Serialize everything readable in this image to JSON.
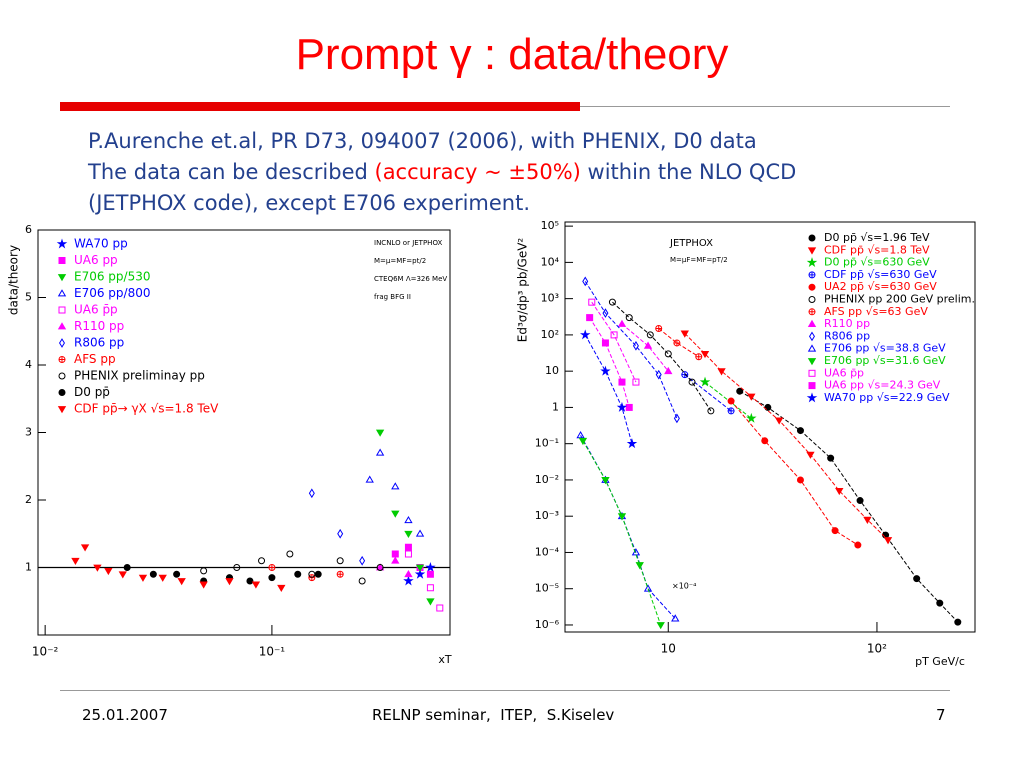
{
  "slide": {
    "title": "Prompt γ : data/theory",
    "lines": [
      "P.Aurenche et.al, PR D73, 094007 (2006), with PHENIX, D0 data",
      "The data can be described ",
      "(accuracy ~ ±50%)",
      " within the NLO QCD",
      "(JETPHOX code), except E706 experiment."
    ]
  },
  "chart_data": [
    {
      "type": "scatter",
      "y_label": "data/theory",
      "x_label": "xT",
      "xlog": true,
      "ylog": false,
      "xlim": [
        0.0093,
        0.61
      ],
      "ylim": [
        0,
        6
      ],
      "xticks": [
        {
          "value": 0.01,
          "label": "10⁻²"
        },
        {
          "value": 0.1,
          "label": "10⁻¹"
        }
      ],
      "yticks": [
        1,
        2,
        3,
        4,
        5,
        6
      ],
      "hline": 1,
      "annotations": [
        "INCNLO or JETPHOX",
        "M=μ=MF=pt/2",
        "CTEQ6M Λ=326 MeV",
        "frag  BFG II"
      ],
      "series": [
        {
          "name": "WA70 pp",
          "color": "#0000ff",
          "marker": "star",
          "x": [
            0.4,
            0.45,
            0.5
          ],
          "values": [
            0.8,
            0.9,
            1.0
          ]
        },
        {
          "name": "UA6 pp",
          "color": "#ff00ff",
          "marker": "square",
          "x": [
            0.35,
            0.4,
            0.45,
            0.5
          ],
          "values": [
            1.2,
            1.3,
            1.0,
            0.9
          ]
        },
        {
          "name": "E706 pp/530",
          "color": "#00cc00",
          "marker": "tri-down",
          "x": [
            0.3,
            0.35,
            0.4,
            0.45,
            0.5
          ],
          "values": [
            3.0,
            1.8,
            1.5,
            1.0,
            0.5
          ]
        },
        {
          "name": "E706 pp/800",
          "color": "#0000ff",
          "marker": "tri-up-open",
          "x": [
            0.27,
            0.3,
            0.35,
            0.4,
            0.45
          ],
          "values": [
            2.3,
            2.7,
            2.2,
            1.7,
            1.5
          ]
        },
        {
          "name": "UA6 p̄p",
          "color": "#ff00ff",
          "marker": "square-open",
          "x": [
            0.4,
            0.5,
            0.55
          ],
          "values": [
            1.2,
            0.7,
            0.4
          ]
        },
        {
          "name": "R110 pp",
          "color": "#ff00ff",
          "marker": "tri-up",
          "x": [
            0.3,
            0.35,
            0.4
          ],
          "values": [
            1.0,
            1.1,
            0.9
          ]
        },
        {
          "name": "R806 pp",
          "color": "#0000ff",
          "marker": "diamond-open",
          "x": [
            0.15,
            0.2,
            0.25
          ],
          "values": [
            2.1,
            1.5,
            1.1
          ]
        },
        {
          "name": "AFS pp",
          "color": "#ff0000",
          "marker": "cross-circle",
          "x": [
            0.1,
            0.15,
            0.2
          ],
          "values": [
            1.0,
            0.85,
            0.9
          ]
        },
        {
          "name": "PHENIX preliminay pp",
          "color": "#000000",
          "marker": "circle-open",
          "x": [
            0.05,
            0.07,
            0.09,
            0.12,
            0.15,
            0.2,
            0.25,
            0.3
          ],
          "values": [
            0.95,
            1.0,
            1.1,
            1.2,
            0.9,
            1.1,
            0.8,
            1.0
          ]
        },
        {
          "name": "D0 pp̄",
          "color": "#000000",
          "marker": "circle",
          "x": [
            0.023,
            0.03,
            0.038,
            0.05,
            0.065,
            0.08,
            0.1,
            0.13,
            0.16
          ],
          "values": [
            1.0,
            0.9,
            0.9,
            0.8,
            0.85,
            0.8,
            0.85,
            0.9,
            0.9
          ]
        },
        {
          "name": "CDF pp̄→ γX √s=1.8 TeV",
          "color": "#ff0000",
          "marker": "tri-down",
          "x": [
            0.0136,
            0.015,
            0.017,
            0.019,
            0.022,
            0.027,
            0.033,
            0.04,
            0.05,
            0.065,
            0.085,
            0.11
          ],
          "values": [
            1.1,
            1.3,
            1.0,
            0.95,
            0.9,
            0.85,
            0.85,
            0.8,
            0.75,
            0.8,
            0.75,
            0.7
          ]
        }
      ]
    },
    {
      "type": "scatter",
      "y_label": "Ed³σ/dp³ pb/GeV²",
      "x_label": "pT GeV/c",
      "xlog": true,
      "ylog": true,
      "xlim": [
        3.2,
        295
      ],
      "ylim": [
        6.4e-07,
        130000
      ],
      "xticks": [
        10,
        {
          "value": 100,
          "label": "10²"
        }
      ],
      "yticks": [
        {
          "value": 100000,
          "label": "10⁵"
        },
        {
          "value": 10000,
          "label": "10⁴"
        },
        {
          "value": 1000,
          "label": "10³"
        },
        {
          "value": 100,
          "label": "10²"
        },
        10,
        1,
        {
          "value": 0.1,
          "label": "10⁻¹"
        },
        {
          "value": 0.01,
          "label": "10⁻²"
        },
        {
          "value": 0.001,
          "label": "10⁻³"
        },
        {
          "value": 0.0001,
          "label": "10⁻⁴"
        },
        {
          "value": 1e-05,
          "label": "10⁻⁵"
        },
        {
          "value": 1e-06,
          "label": "10⁻⁶"
        }
      ],
      "annotations": [
        "JETPHOX",
        "M=μF=MF=pT/2",
        "×10⁻⁴"
      ],
      "series": [
        {
          "name": "D0 pp̄ √s=1.96 TeV",
          "color": "#000000",
          "marker": "circle",
          "x": [
            22,
            30,
            43,
            60,
            83,
            110,
            155,
            200,
            244
          ],
          "values": [
            2.8,
            1.0,
            0.23,
            0.04,
            0.0027,
            0.0003,
            1.9e-05,
            4e-06,
            1.2e-06
          ]
        },
        {
          "name": "CDF pp̄ √s=1.8 TeV",
          "color": "#ff0000",
          "marker": "tri-down",
          "x": [
            12,
            15,
            18,
            25,
            34,
            48,
            66,
            90,
            113
          ],
          "values": [
            110,
            30,
            10,
            2,
            0.44,
            0.05,
            0.005,
            0.0008,
            0.00022
          ]
        },
        {
          "name": "D0 pp̄ √s=630 GeV",
          "color": "#00cc00",
          "marker": "star",
          "x": [
            15,
            25
          ],
          "values": [
            5,
            0.5
          ]
        },
        {
          "name": "CDF pp̄ √s=630 GeV",
          "color": "#0000ff",
          "marker": "cross-circle",
          "x": [
            12,
            20
          ],
          "values": [
            8,
            0.8
          ]
        },
        {
          "name": "UA2 pp̄ √s=630 GeV",
          "color": "#ff0000",
          "marker": "circle",
          "x": [
            20,
            29,
            43,
            63,
            81
          ],
          "values": [
            1.5,
            0.12,
            0.01,
            0.0004,
            0.00016
          ]
        },
        {
          "name": "PHENIX pp 200 GeV prelim.",
          "color": "#000000",
          "marker": "circle-open",
          "x": [
            5.4,
            6.5,
            8.2,
            10,
            13,
            16
          ],
          "values": [
            800,
            300,
            100,
            30,
            5,
            0.8
          ]
        },
        {
          "name": "AFS pp √s=63 GeV",
          "color": "#ff0000",
          "marker": "cross-circle",
          "x": [
            9,
            11,
            14
          ],
          "values": [
            150,
            60,
            25
          ]
        },
        {
          "name": "R110 pp",
          "color": "#ff00ff",
          "marker": "tri-up",
          "x": [
            6,
            8,
            10
          ],
          "values": [
            200,
            50,
            10
          ]
        },
        {
          "name": "R806 pp",
          "color": "#0000ff",
          "marker": "diamond-open",
          "x": [
            4,
            5,
            7,
            9,
            11
          ],
          "values": [
            3000,
            400,
            50,
            8,
            0.5
          ]
        },
        {
          "name": "E706 pp √s=38.8 GeV",
          "color": "#0000ff",
          "marker": "tri-up-open",
          "x": [
            3.8,
            5,
            6,
            7,
            8,
            10.8
          ],
          "values": [
            0.17,
            0.01,
            0.001,
            0.0001,
            1e-05,
            1.5e-06
          ]
        },
        {
          "name": "E706 pp √s=31.6 GeV",
          "color": "#00cc00",
          "marker": "tri-down",
          "x": [
            3.9,
            5,
            6,
            7.3,
            9.2
          ],
          "values": [
            0.12,
            0.01,
            0.001,
            4.5e-05,
            1e-06
          ]
        },
        {
          "name": "UA6 p̄p",
          "color": "#ff00ff",
          "marker": "square-open",
          "x": [
            4.3,
            5.5,
            7
          ],
          "values": [
            800,
            100,
            5
          ]
        },
        {
          "name": "UA6 pp √s=24.3 GeV",
          "color": "#ff00ff",
          "marker": "square",
          "x": [
            4.2,
            5,
            6,
            6.5
          ],
          "values": [
            300,
            60,
            5,
            1
          ]
        },
        {
          "name": "WA70 pp √s=22.9 GeV",
          "color": "#0000ff",
          "marker": "star",
          "x": [
            4,
            5,
            6,
            6.7
          ],
          "values": [
            100,
            10,
            1,
            0.1
          ]
        }
      ]
    }
  ],
  "footer": {
    "date": "25.01.2007",
    "event": "RELNP seminar,  ITEP,  S.Kiselev",
    "page": "7"
  }
}
